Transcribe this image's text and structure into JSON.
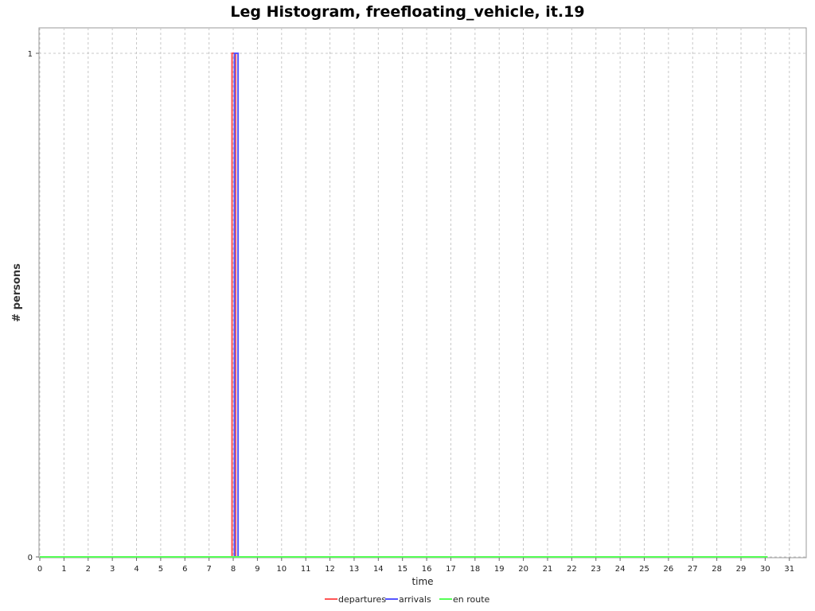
{
  "chart_data": {
    "type": "line",
    "title": "Leg Histogram, freefloating_vehicle, it.19",
    "xlabel": "time",
    "ylabel": "# persons",
    "xlim": [
      0,
      31
    ],
    "ylim": [
      0,
      1
    ],
    "x_ticks": [
      0,
      1,
      2,
      3,
      4,
      5,
      6,
      7,
      8,
      9,
      10,
      11,
      12,
      13,
      14,
      15,
      16,
      17,
      18,
      19,
      20,
      21,
      22,
      23,
      24,
      25,
      26,
      27,
      28,
      29,
      30,
      31
    ],
    "y_ticks": [
      0,
      1
    ],
    "grid": true,
    "legend_position": "bottom",
    "series": [
      {
        "name": "departures",
        "color": "#ff5555",
        "x": [
          0,
          7.95,
          7.95,
          8.1,
          8.1,
          30.1
        ],
        "y": [
          0,
          0,
          1,
          1,
          0,
          0
        ]
      },
      {
        "name": "arrivals",
        "color": "#5555ff",
        "x": [
          0,
          8.05,
          8.05,
          8.2,
          8.2,
          30.1
        ],
        "y": [
          0,
          0,
          1,
          1,
          0,
          0
        ]
      },
      {
        "name": "en route",
        "color": "#55ff55",
        "x": [
          0,
          30.1
        ],
        "y": [
          0,
          0
        ]
      }
    ]
  }
}
